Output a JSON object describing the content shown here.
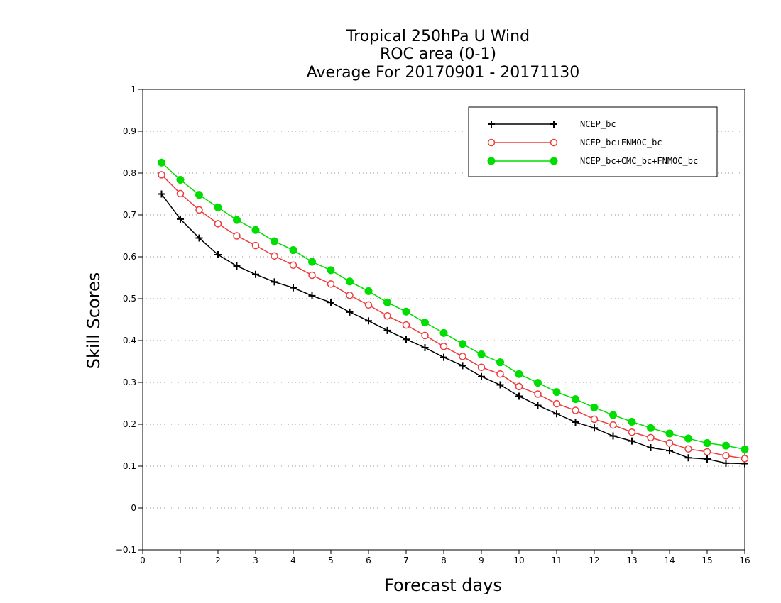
{
  "chart_data": {
    "type": "line",
    "title": [
      "Tropical 250hPa U Wind",
      "ROC area (0-1)",
      "Average For 20170901 - 20171130"
    ],
    "xlabel": "Forecast days",
    "ylabel": "Skill Scores",
    "xlim": [
      0,
      16
    ],
    "ylim": [
      -0.1,
      1
    ],
    "xticks": [
      "0",
      "1",
      "2",
      "3",
      "4",
      "5",
      "6",
      "7",
      "8",
      "9",
      "10",
      "11",
      "12",
      "13",
      "14",
      "15",
      "16"
    ],
    "yticks": [
      "−0.1",
      "0",
      "0.1",
      "0.2",
      "0.3",
      "0.4",
      "0.5",
      "0.6",
      "0.7",
      "0.8",
      "0.9",
      "1"
    ],
    "grid": "horizontal-dotted",
    "legend_position": "top-right",
    "x": [
      0.5,
      1,
      1.5,
      2,
      2.5,
      3,
      3.5,
      4,
      4.5,
      5,
      5.5,
      6,
      6.5,
      7,
      7.5,
      8,
      8.5,
      9,
      9.5,
      10,
      10.5,
      11,
      11.5,
      12,
      12.5,
      13,
      13.5,
      14,
      14.5,
      15,
      15.5,
      16
    ],
    "series": [
      {
        "name": "NCEP_bc",
        "color": "#000000",
        "marker": "plus",
        "values": [
          0.75,
          0.69,
          0.645,
          0.605,
          0.578,
          0.558,
          0.54,
          0.526,
          0.507,
          0.491,
          0.468,
          0.447,
          0.424,
          0.403,
          0.383,
          0.36,
          0.34,
          0.314,
          0.294,
          0.267,
          0.245,
          0.225,
          0.205,
          0.191,
          0.172,
          0.16,
          0.144,
          0.137,
          0.12,
          0.117,
          0.107,
          0.106
        ]
      },
      {
        "name": "NCEP_bc+FNMOC_bc",
        "color": "#ee3b3b",
        "marker": "open-circle",
        "values": [
          0.796,
          0.751,
          0.712,
          0.679,
          0.65,
          0.627,
          0.602,
          0.58,
          0.556,
          0.535,
          0.508,
          0.485,
          0.459,
          0.437,
          0.412,
          0.386,
          0.362,
          0.336,
          0.32,
          0.29,
          0.272,
          0.249,
          0.233,
          0.212,
          0.198,
          0.181,
          0.168,
          0.155,
          0.141,
          0.134,
          0.125,
          0.118
        ]
      },
      {
        "name": "NCEP_bc+CMC_bc+FNMOC_bc",
        "color": "#00dd00",
        "marker": "filled-circle",
        "values": [
          0.825,
          0.784,
          0.748,
          0.718,
          0.688,
          0.664,
          0.637,
          0.616,
          0.588,
          0.568,
          0.541,
          0.518,
          0.491,
          0.469,
          0.443,
          0.418,
          0.392,
          0.367,
          0.348,
          0.32,
          0.299,
          0.277,
          0.26,
          0.24,
          0.222,
          0.206,
          0.191,
          0.178,
          0.166,
          0.155,
          0.149,
          0.14
        ]
      }
    ]
  }
}
